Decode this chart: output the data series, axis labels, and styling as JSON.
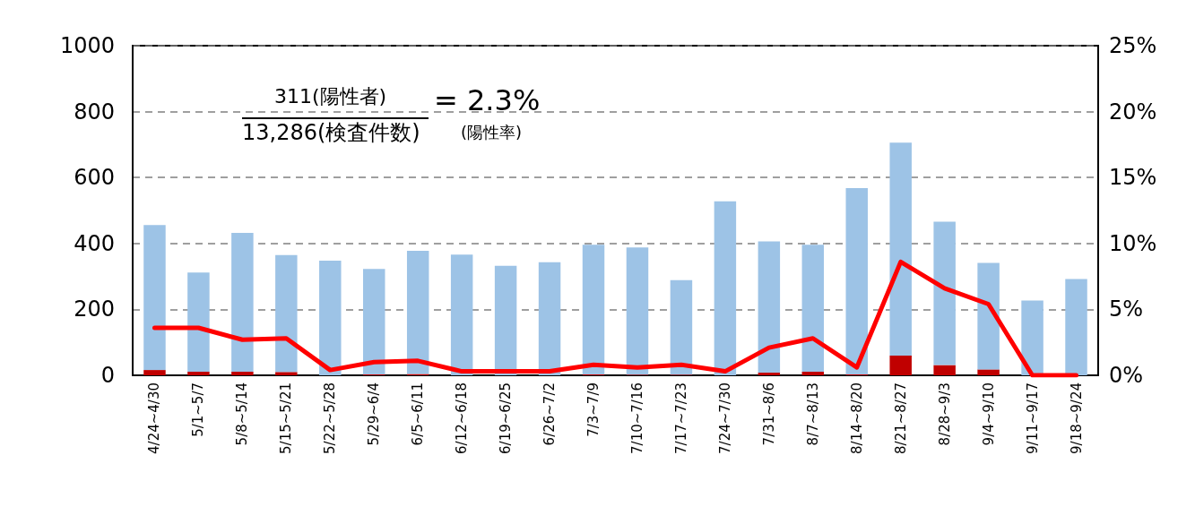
{
  "chart_data": {
    "type": "bar",
    "stacked": true,
    "categories": [
      "4/24~4/30",
      "5/1~5/7",
      "5/8~5/14",
      "5/15~5/21",
      "5/22~5/28",
      "5/29~6/4",
      "6/5~6/11",
      "6/12~6/18",
      "6/19~6/25",
      "6/26~7/2",
      "7/3~7/9",
      "7/10~7/16",
      "7/17~7/23",
      "7/24~7/30",
      "7/31~8/6",
      "8/7~8/13",
      "8/14~8/20",
      "8/21~8/27",
      "8/28~9/3",
      "9/4~9/10",
      "9/11~9/17",
      "9/18~9/24"
    ],
    "series": [
      {
        "color": "#c00000",
        "values": [
          16,
          11,
          11,
          10,
          null,
          3,
          4,
          null,
          null,
          null,
          3,
          2,
          2,
          null,
          8,
          11,
          3,
          60,
          31,
          18,
          0,
          0
        ]
      },
      {
        "color": "#9dc3e6",
        "values": [
          440,
          301,
          421,
          355,
          348,
          320,
          374,
          366,
          332,
          343,
          393,
          386,
          287,
          528,
          398,
          385,
          565,
          646,
          435,
          323,
          227,
          292
        ]
      },
      {
        "type": "line",
        "axis": "y2",
        "color": "#ff0000",
        "marker": "none",
        "line_style": "solid",
        "values": [
          3.6,
          3.6,
          2.7,
          2.8,
          0.4,
          1.0,
          1.1,
          0.3,
          0.3,
          0.3,
          0.8,
          0.6,
          0.8,
          0.3,
          2.1,
          2.8,
          0.6,
          8.6,
          6.6,
          5.4,
          0,
          0
        ]
      }
    ],
    "ylim": [
      0,
      1000
    ],
    "yticks": [
      0,
      200,
      400,
      600,
      800,
      1000
    ],
    "y2lim": [
      0,
      25
    ],
    "y2ticks": [
      {
        "value": 0,
        "label": "0%"
      },
      {
        "value": 5,
        "label": "5%"
      },
      {
        "value": 10,
        "label": "10%"
      },
      {
        "value": 15,
        "label": "15%"
      },
      {
        "value": 20,
        "label": "20%"
      },
      {
        "value": 25,
        "label": "25%"
      }
    ],
    "grid": "y",
    "annotations": [
      "311(陽性者)",
      "13,286(検査件数)",
      "= 2.3%",
      "(陽性率)"
    ]
  }
}
